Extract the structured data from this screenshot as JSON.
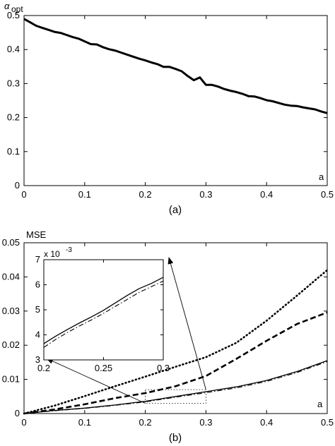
{
  "chart_data": [
    {
      "id": "a",
      "type": "line",
      "caption": "(a)",
      "ylabel": "α",
      "ylabel_sub": "opt",
      "xlabel": "a",
      "xlim": [
        0,
        0.5
      ],
      "ylim": [
        0,
        0.5
      ],
      "xticks": [
        "0",
        "0.1",
        "0.2",
        "0.3",
        "0.4",
        "0.5"
      ],
      "yticks": [
        "0",
        "0.1",
        "0.2",
        "0.3",
        "0.4",
        "0.5"
      ],
      "grid": false,
      "series": [
        {
          "style": "solid-thick",
          "x": [
            0,
            0.01,
            0.02,
            0.03,
            0.04,
            0.05,
            0.06,
            0.07,
            0.08,
            0.09,
            0.1,
            0.11,
            0.12,
            0.13,
            0.14,
            0.15,
            0.16,
            0.17,
            0.18,
            0.19,
            0.2,
            0.21,
            0.22,
            0.23,
            0.24,
            0.25,
            0.26,
            0.27,
            0.28,
            0.29,
            0.3,
            0.31,
            0.32,
            0.33,
            0.34,
            0.35,
            0.36,
            0.37,
            0.38,
            0.39,
            0.4,
            0.41,
            0.42,
            0.43,
            0.44,
            0.45,
            0.46,
            0.47,
            0.48,
            0.49,
            0.5
          ],
          "y": [
            0.49,
            0.48,
            0.47,
            0.464,
            0.458,
            0.452,
            0.449,
            0.443,
            0.437,
            0.432,
            0.424,
            0.416,
            0.415,
            0.407,
            0.401,
            0.397,
            0.391,
            0.385,
            0.379,
            0.373,
            0.368,
            0.362,
            0.357,
            0.349,
            0.349,
            0.343,
            0.336,
            0.322,
            0.31,
            0.318,
            0.296,
            0.296,
            0.291,
            0.284,
            0.279,
            0.275,
            0.27,
            0.263,
            0.262,
            0.257,
            0.251,
            0.248,
            0.243,
            0.238,
            0.235,
            0.234,
            0.23,
            0.227,
            0.224,
            0.218,
            0.213
          ]
        }
      ]
    },
    {
      "id": "b",
      "type": "line",
      "caption": "(b)",
      "ylabel": "MSE",
      "xlabel": "a",
      "xlim": [
        0,
        0.5
      ],
      "ylim": [
        0,
        0.05
      ],
      "xticks": [
        "0",
        "0.1",
        "0.2",
        "0.3",
        "0.4",
        "0.5"
      ],
      "yticks": [
        "0",
        "0.01",
        "0.02",
        "0.03",
        "0.04",
        "0.05"
      ],
      "grid": false,
      "series": [
        {
          "style": "dotted",
          "x": [
            0,
            0.05,
            0.1,
            0.15,
            0.2,
            0.25,
            0.3,
            0.35,
            0.4,
            0.45,
            0.5
          ],
          "y": [
            0,
            0.0023,
            0.0051,
            0.008,
            0.0108,
            0.0137,
            0.0165,
            0.0207,
            0.0272,
            0.0345,
            0.042
          ]
        },
        {
          "style": "dashed",
          "x": [
            0,
            0.05,
            0.1,
            0.15,
            0.2,
            0.25,
            0.3,
            0.35,
            0.4,
            0.45,
            0.5
          ],
          "y": [
            0,
            0.0012,
            0.0027,
            0.0045,
            0.006,
            0.008,
            0.011,
            0.016,
            0.0213,
            0.0262,
            0.0296
          ]
        },
        {
          "style": "solid",
          "x": [
            0,
            0.05,
            0.1,
            0.15,
            0.2,
            0.25,
            0.3,
            0.35,
            0.4,
            0.45,
            0.5
          ],
          "y": [
            0,
            0.0009,
            0.0016,
            0.0025,
            0.0036,
            0.005,
            0.0064,
            0.0078,
            0.0097,
            0.0123,
            0.0155
          ]
        },
        {
          "style": "dashdot",
          "x": [
            0,
            0.05,
            0.1,
            0.15,
            0.2,
            0.25,
            0.3,
            0.35,
            0.4,
            0.45,
            0.5
          ],
          "y": [
            0,
            0.0008,
            0.0015,
            0.0024,
            0.0034,
            0.0048,
            0.0061,
            0.0075,
            0.0094,
            0.012,
            0.0152
          ]
        }
      ],
      "zoom_box": {
        "xlim": [
          0.2,
          0.3
        ],
        "ylim": [
          0.003,
          0.007
        ]
      },
      "inset": {
        "type": "line",
        "xlim": [
          0.2,
          0.3
        ],
        "ylim": [
          3,
          7
        ],
        "xticks": [
          "0.2",
          "0.25",
          "0.3"
        ],
        "yticks": [
          "3",
          "4",
          "5",
          "6",
          "7"
        ],
        "scale_label": "x 10",
        "scale_exp": "-3",
        "series": [
          {
            "style": "solid",
            "x": [
              0.2,
              0.21,
              0.22,
              0.23,
              0.24,
              0.25,
              0.26,
              0.27,
              0.28,
              0.29,
              0.3
            ],
            "y": [
              3.65,
              3.95,
              4.22,
              4.48,
              4.72,
              4.98,
              5.28,
              5.58,
              5.85,
              6.05,
              6.3
            ]
          },
          {
            "style": "dashdot",
            "x": [
              0.2,
              0.21,
              0.22,
              0.23,
              0.24,
              0.25,
              0.26,
              0.27,
              0.28,
              0.29,
              0.3
            ],
            "y": [
              3.5,
              3.82,
              4.1,
              4.36,
              4.6,
              4.86,
              5.14,
              5.42,
              5.7,
              5.92,
              6.15
            ]
          }
        ]
      }
    }
  ]
}
